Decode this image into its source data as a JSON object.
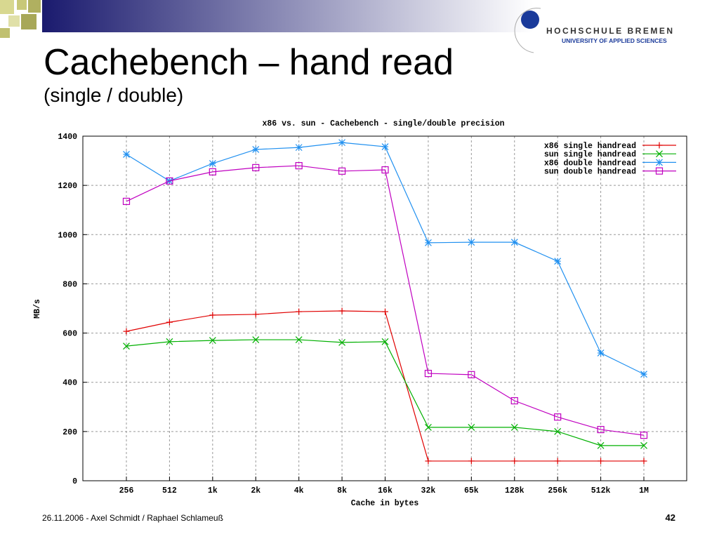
{
  "slide": {
    "title": "Cachebench – hand read",
    "subtitle": "(single / double)",
    "logo_name": "HOCHSCHULE BREMEN",
    "logo_sub": "UNIVERSITY OF APPLIED SCIENCES",
    "footer": "26.11.2006 - Axel Schmidt / Raphael Schlameuß",
    "page_number": "42"
  },
  "chart_data": {
    "type": "line",
    "title": "x86 vs. sun - Cachebench - single/double precision",
    "x_label": "Cache in bytes",
    "y_label": "MB/s",
    "categories": [
      "256",
      "512",
      "1k",
      "2k",
      "4k",
      "8k",
      "16k",
      "32k",
      "65k",
      "128k",
      "256k",
      "512k",
      "1M"
    ],
    "ylim": [
      0,
      1400
    ],
    "yticks": [
      0,
      200,
      400,
      600,
      800,
      1000,
      1200,
      1400
    ],
    "grid": true,
    "legend": "top-right",
    "series": [
      {
        "name": "x86 single handread",
        "color": "#e00000",
        "marker": "plus",
        "values": [
          607,
          644,
          673,
          676,
          687,
          690,
          687,
          80,
          80,
          80,
          80,
          80,
          80
        ]
      },
      {
        "name": "sun single handread",
        "color": "#00b000",
        "marker": "cross",
        "values": [
          547,
          565,
          570,
          573,
          573,
          562,
          565,
          217,
          217,
          217,
          200,
          143,
          143
        ]
      },
      {
        "name": "x86 double handread",
        "color": "#2090f0",
        "marker": "star",
        "values": [
          1326,
          1218,
          1289,
          1346,
          1354,
          1374,
          1357,
          967,
          969,
          969,
          892,
          519,
          433
        ]
      },
      {
        "name": "sun double handread",
        "color": "#c000c0",
        "marker": "square",
        "values": [
          1135,
          1218,
          1255,
          1272,
          1280,
          1258,
          1263,
          436,
          431,
          325,
          259,
          208,
          185
        ]
      }
    ]
  }
}
